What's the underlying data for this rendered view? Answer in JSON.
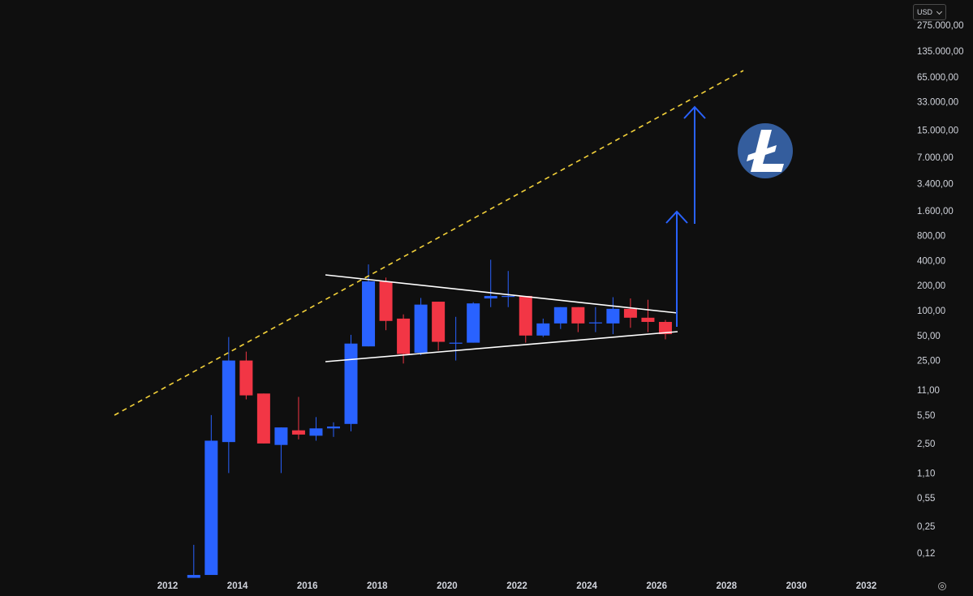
{
  "currency_selector": {
    "value": "USD"
  },
  "icons": {
    "logo": "litecoin-logo-icon",
    "settings": "gear-icon",
    "dropdown": "chevron-down-icon"
  },
  "colors": {
    "background": "#0f0f0f",
    "bull": "#2962ff",
    "bear": "#f23645",
    "trendline": "#ffffff",
    "dashed_line": "#f5d33a",
    "arrow": "#2962ff",
    "logo_bg": "#345d9d",
    "axis_text": "#d1d4dc"
  },
  "chart_data": {
    "type": "candlestick",
    "interval": "6M",
    "y_scale": "log",
    "y_ticks": [
      {
        "value": 275000,
        "label": "275.000,00"
      },
      {
        "value": 135000,
        "label": "135.000,00"
      },
      {
        "value": 65000,
        "label": "65.000,00"
      },
      {
        "value": 33000,
        "label": "33.000,00"
      },
      {
        "value": 15000,
        "label": "15.000,00"
      },
      {
        "value": 7000,
        "label": "7.000,00"
      },
      {
        "value": 3400,
        "label": "3.400,00"
      },
      {
        "value": 1600,
        "label": "1.600,00"
      },
      {
        "value": 800,
        "label": "800,00"
      },
      {
        "value": 400,
        "label": "400,00"
      },
      {
        "value": 200,
        "label": "200,00"
      },
      {
        "value": 100,
        "label": "100,00"
      },
      {
        "value": 50,
        "label": "50,00"
      },
      {
        "value": 25,
        "label": "25,00"
      },
      {
        "value": 11,
        "label": "11,00"
      },
      {
        "value": 5.5,
        "label": "5,50"
      },
      {
        "value": 2.5,
        "label": "2,50"
      },
      {
        "value": 1.1,
        "label": "1,10"
      },
      {
        "value": 0.55,
        "label": "0,55"
      },
      {
        "value": 0.25,
        "label": "0,25"
      },
      {
        "value": 0.12,
        "label": "0,12"
      }
    ],
    "x_ticks": [
      "2012",
      "2014",
      "2016",
      "2018",
      "2020",
      "2022",
      "2024",
      "2026",
      "2028",
      "2030",
      "2032"
    ],
    "candles": [
      {
        "t": "2012-07",
        "o": 0.06,
        "h": 0.15,
        "l": 0.06,
        "c": 0.065
      },
      {
        "t": "2013-01",
        "o": 0.065,
        "h": 5.5,
        "l": 0.065,
        "c": 2.7
      },
      {
        "t": "2013-07",
        "o": 2.6,
        "h": 48,
        "l": 1.1,
        "c": 25
      },
      {
        "t": "2014-01",
        "o": 25,
        "h": 32,
        "l": 8.5,
        "c": 9.5
      },
      {
        "t": "2014-07",
        "o": 10,
        "h": 10,
        "l": 2.5,
        "c": 2.5
      },
      {
        "t": "2015-01",
        "o": 2.4,
        "h": 3.9,
        "l": 1.1,
        "c": 3.9
      },
      {
        "t": "2015-07",
        "o": 3.6,
        "h": 9.1,
        "l": 2.8,
        "c": 3.2
      },
      {
        "t": "2016-01",
        "o": 3.1,
        "h": 5.2,
        "l": 2.7,
        "c": 3.8
      },
      {
        "t": "2016-07",
        "o": 3.8,
        "h": 4.5,
        "l": 3.0,
        "c": 4.0
      },
      {
        "t": "2017-01",
        "o": 4.3,
        "h": 51,
        "l": 3.5,
        "c": 40
      },
      {
        "t": "2017-07",
        "o": 37,
        "h": 360,
        "l": 37,
        "c": 225
      },
      {
        "t": "2018-01",
        "o": 225,
        "h": 250,
        "l": 58,
        "c": 75
      },
      {
        "t": "2018-07",
        "o": 80,
        "h": 90,
        "l": 23,
        "c": 30
      },
      {
        "t": "2019-01",
        "o": 31,
        "h": 142,
        "l": 29,
        "c": 118
      },
      {
        "t": "2019-07",
        "o": 128,
        "h": 128,
        "l": 33,
        "c": 42
      },
      {
        "t": "2020-01",
        "o": 41,
        "h": 84,
        "l": 25,
        "c": 41
      },
      {
        "t": "2020-07",
        "o": 41,
        "h": 126,
        "l": 41,
        "c": 122
      },
      {
        "t": "2021-01",
        "o": 140,
        "h": 410,
        "l": 110,
        "c": 150
      },
      {
        "t": "2021-07",
        "o": 150,
        "h": 300,
        "l": 110,
        "c": 150
      },
      {
        "t": "2022-01",
        "o": 150,
        "h": 150,
        "l": 41,
        "c": 50
      },
      {
        "t": "2022-07",
        "o": 50,
        "h": 80,
        "l": 48,
        "c": 70
      },
      {
        "t": "2023-01",
        "o": 70,
        "h": 110,
        "l": 60,
        "c": 110
      },
      {
        "t": "2023-07",
        "o": 110,
        "h": 110,
        "l": 55,
        "c": 70
      },
      {
        "t": "2024-01",
        "o": 72,
        "h": 110,
        "l": 55,
        "c": 72
      },
      {
        "t": "2024-07",
        "o": 70,
        "h": 145,
        "l": 52,
        "c": 105
      },
      {
        "t": "2025-01",
        "o": 105,
        "h": 140,
        "l": 62,
        "c": 82
      },
      {
        "t": "2025-07",
        "o": 82,
        "h": 135,
        "l": 55,
        "c": 73
      },
      {
        "t": "2026-01",
        "o": 73,
        "h": 77,
        "l": 45,
        "c": 52
      }
    ]
  }
}
